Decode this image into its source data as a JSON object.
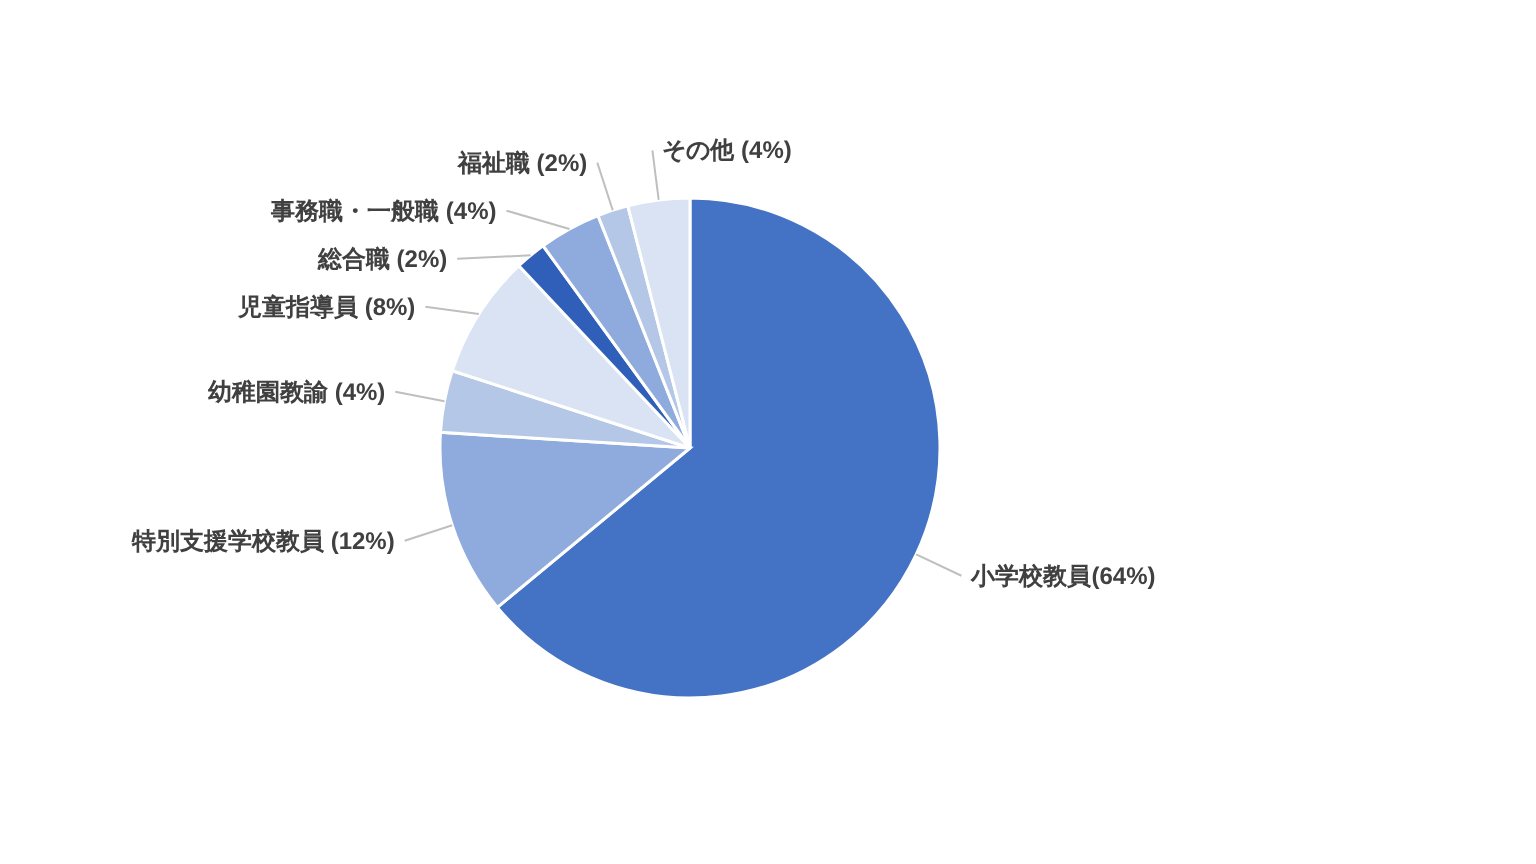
{
  "chart_data": {
    "type": "pie",
    "categories": [
      "小学校教員(64%)",
      "特別支援学校教員 (12%)",
      "幼稚園教諭 (4%)",
      "児童指導員 (8%)",
      "総合職 (2%)",
      "事務職・一般職 (4%)",
      "福祉職 (2%)",
      "その他 (4%)"
    ],
    "values": [
      64,
      12,
      4,
      8,
      2,
      4,
      2,
      4
    ],
    "colors": [
      "#4472c4",
      "#8faadc",
      "#b4c7e7",
      "#dae3f3",
      "#2f5fb8",
      "#8faadc",
      "#b4c7e7",
      "#dae3f3"
    ]
  }
}
